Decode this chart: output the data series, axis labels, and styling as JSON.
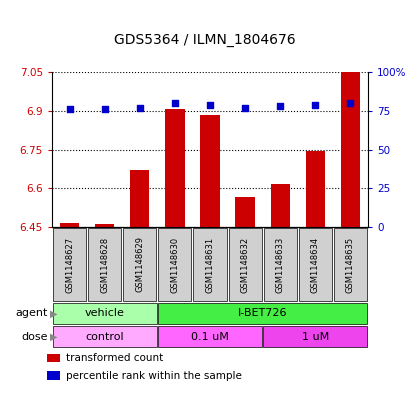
{
  "title": "GDS5364 / ILMN_1804676",
  "samples": [
    "GSM1148627",
    "GSM1148628",
    "GSM1148629",
    "GSM1148630",
    "GSM1148631",
    "GSM1148632",
    "GSM1148633",
    "GSM1148634",
    "GSM1148635"
  ],
  "bar_values": [
    6.465,
    6.462,
    6.67,
    6.905,
    6.885,
    6.565,
    6.615,
    6.745,
    7.05
  ],
  "percentile_values": [
    76,
    76,
    77,
    80,
    79,
    77,
    78,
    79,
    80
  ],
  "ylim_left": [
    6.45,
    7.05
  ],
  "ylim_right": [
    0,
    100
  ],
  "yticks_left": [
    6.45,
    6.6,
    6.75,
    6.9,
    7.05
  ],
  "ytick_labels_left": [
    "6.45",
    "6.6",
    "6.75",
    "6.9",
    "7.05"
  ],
  "yticks_right": [
    0,
    25,
    50,
    75,
    100
  ],
  "ytick_labels_right": [
    "0",
    "25",
    "50",
    "75",
    "100%"
  ],
  "bar_color": "#cc0000",
  "dot_color": "#0000cc",
  "bar_width": 0.55,
  "agent_labels": [
    {
      "text": "vehicle",
      "start": 0,
      "end": 3,
      "color": "#aaffaa"
    },
    {
      "text": "I-BET726",
      "start": 3,
      "end": 9,
      "color": "#44ee44"
    }
  ],
  "dose_labels": [
    {
      "text": "control",
      "start": 0,
      "end": 3,
      "color": "#ffaaff"
    },
    {
      "text": "0.1 uM",
      "start": 3,
      "end": 6,
      "color": "#ff66ff"
    },
    {
      "text": "1 uM",
      "start": 6,
      "end": 9,
      "color": "#ee44ee"
    }
  ],
  "legend_items": [
    {
      "label": "transformed count",
      "color": "#cc0000"
    },
    {
      "label": "percentile rank within the sample",
      "color": "#0000cc"
    }
  ],
  "tick_color_left": "#cc0000",
  "tick_color_right": "#0000cc",
  "background_color": "#ffffff",
  "sample_box_color": "#d0d0d0"
}
